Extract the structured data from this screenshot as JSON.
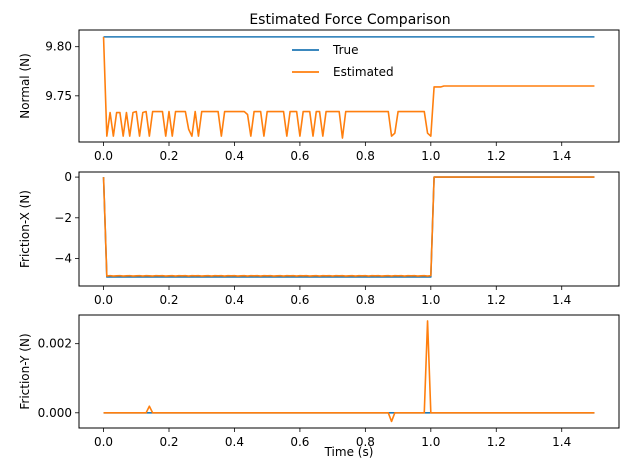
{
  "title": "Estimated Force Comparison",
  "xlabel": "Time (s)",
  "x_ticks": [
    0.0,
    0.2,
    0.4,
    0.6,
    0.8,
    1.0,
    1.2,
    1.4
  ],
  "x_tick_labels": [
    "0.0",
    "0.2",
    "0.4",
    "0.6",
    "0.8",
    "1.0",
    "1.2",
    "1.4"
  ],
  "legend": {
    "placement": "upper-center",
    "entries": [
      {
        "name": "True",
        "color": "#1f77b4"
      },
      {
        "name": "Estimated",
        "color": "#ff7f0e"
      }
    ]
  },
  "chart_data": [
    {
      "type": "line",
      "ylabel": "Normal (N)",
      "xlim": [
        -0.075,
        1.575
      ],
      "ylim": [
        9.703,
        9.817
      ],
      "y_ticks": [
        9.75,
        9.8
      ],
      "y_tick_labels": [
        "9.75",
        "9.80"
      ],
      "series": [
        {
          "name": "True",
          "color": "#1f77b4",
          "x": [
            0.0,
            1.5
          ],
          "y": [
            9.81,
            9.81
          ]
        },
        {
          "name": "Estimated",
          "color": "#ff7f0e",
          "x": [
            0.0,
            0.01,
            0.02,
            0.03,
            0.04,
            0.05,
            0.06,
            0.07,
            0.08,
            0.09,
            0.1,
            0.11,
            0.12,
            0.13,
            0.14,
            0.15,
            0.16,
            0.17,
            0.18,
            0.19,
            0.2,
            0.21,
            0.22,
            0.23,
            0.24,
            0.25,
            0.26,
            0.27,
            0.28,
            0.29,
            0.3,
            0.31,
            0.32,
            0.33,
            0.34,
            0.35,
            0.36,
            0.37,
            0.38,
            0.39,
            0.4,
            0.41,
            0.42,
            0.43,
            0.44,
            0.45,
            0.46,
            0.47,
            0.48,
            0.49,
            0.5,
            0.51,
            0.52,
            0.53,
            0.54,
            0.55,
            0.56,
            0.57,
            0.58,
            0.59,
            0.6,
            0.61,
            0.62,
            0.63,
            0.64,
            0.65,
            0.66,
            0.67,
            0.68,
            0.69,
            0.7,
            0.71,
            0.72,
            0.73,
            0.74,
            0.75,
            0.76,
            0.77,
            0.78,
            0.79,
            0.8,
            0.81,
            0.82,
            0.83,
            0.84,
            0.85,
            0.86,
            0.87,
            0.88,
            0.89,
            0.9,
            0.91,
            0.92,
            0.93,
            0.94,
            0.95,
            0.96,
            0.97,
            0.98,
            0.99,
            1.0,
            1.01,
            1.02,
            1.03,
            1.04,
            1.05,
            1.5
          ],
          "y": [
            9.81,
            9.709,
            9.733,
            9.709,
            9.733,
            9.733,
            9.709,
            9.733,
            9.709,
            9.733,
            9.734,
            9.709,
            9.733,
            9.734,
            9.709,
            9.734,
            9.734,
            9.734,
            9.734,
            9.709,
            9.734,
            9.709,
            9.734,
            9.734,
            9.734,
            9.734,
            9.716,
            9.709,
            9.734,
            9.709,
            9.734,
            9.734,
            9.734,
            9.734,
            9.734,
            9.734,
            9.709,
            9.734,
            9.734,
            9.734,
            9.734,
            9.734,
            9.734,
            9.734,
            9.731,
            9.709,
            9.734,
            9.734,
            9.734,
            9.709,
            9.734,
            9.734,
            9.734,
            9.734,
            9.734,
            9.734,
            9.709,
            9.734,
            9.734,
            9.734,
            9.709,
            9.734,
            9.734,
            9.734,
            9.709,
            9.734,
            9.734,
            9.709,
            9.734,
            9.734,
            9.734,
            9.734,
            9.734,
            9.707,
            9.734,
            9.734,
            9.734,
            9.734,
            9.734,
            9.734,
            9.734,
            9.734,
            9.734,
            9.734,
            9.734,
            9.734,
            9.734,
            9.734,
            9.709,
            9.712,
            9.734,
            9.734,
            9.734,
            9.734,
            9.734,
            9.734,
            9.734,
            9.734,
            9.734,
            9.712,
            9.709,
            9.759,
            9.759,
            9.759,
            9.76,
            9.76,
            9.76
          ]
        }
      ]
    },
    {
      "type": "line",
      "ylabel": "Friction-X (N)",
      "xlim": [
        -0.075,
        1.575
      ],
      "ylim": [
        -5.35,
        0.25
      ],
      "y_ticks": [
        -4,
        -2,
        0
      ],
      "y_tick_labels": [
        "−4",
        "−2",
        "0"
      ],
      "series": [
        {
          "name": "True",
          "color": "#1f77b4",
          "x": [
            0.0,
            0.01,
            0.99,
            1.0,
            1.01,
            1.5
          ],
          "y": [
            0.0,
            -4.905,
            -4.905,
            -4.905,
            0.0,
            0.0
          ]
        },
        {
          "name": "Estimated",
          "color": "#ff7f0e",
          "x": [
            0.0,
            0.01,
            0.02,
            0.03,
            0.04,
            0.05,
            0.06,
            0.07,
            0.08,
            0.09,
            0.1,
            0.11,
            0.12,
            0.13,
            0.14,
            0.15,
            0.16,
            0.17,
            0.18,
            0.19,
            0.2,
            0.21,
            0.22,
            0.23,
            0.24,
            0.25,
            0.26,
            0.27,
            0.28,
            0.29,
            0.3,
            0.31,
            0.32,
            0.33,
            0.34,
            0.35,
            0.36,
            0.37,
            0.38,
            0.39,
            0.4,
            0.41,
            0.42,
            0.43,
            0.44,
            0.45,
            0.46,
            0.47,
            0.48,
            0.49,
            0.5,
            0.51,
            0.52,
            0.53,
            0.54,
            0.55,
            0.56,
            0.57,
            0.58,
            0.59,
            0.6,
            0.61,
            0.62,
            0.63,
            0.64,
            0.65,
            0.66,
            0.67,
            0.68,
            0.69,
            0.7,
            0.71,
            0.72,
            0.73,
            0.74,
            0.75,
            0.76,
            0.77,
            0.78,
            0.79,
            0.8,
            0.81,
            0.82,
            0.83,
            0.84,
            0.85,
            0.86,
            0.87,
            0.88,
            0.89,
            0.9,
            0.91,
            0.92,
            0.93,
            0.94,
            0.95,
            0.96,
            0.97,
            0.98,
            0.99,
            1.0,
            1.01,
            1.5
          ],
          "y": [
            0.0,
            -4.86,
            -4.84,
            -4.86,
            -4.85,
            -4.84,
            -4.86,
            -4.85,
            -4.84,
            -4.86,
            -4.85,
            -4.84,
            -4.86,
            -4.84,
            -4.85,
            -4.86,
            -4.84,
            -4.85,
            -4.84,
            -4.86,
            -4.85,
            -4.84,
            -4.86,
            -4.84,
            -4.85,
            -4.84,
            -4.86,
            -4.84,
            -4.85,
            -4.84,
            -4.86,
            -4.85,
            -4.84,
            -4.86,
            -4.84,
            -4.85,
            -4.84,
            -4.86,
            -4.84,
            -4.85,
            -4.84,
            -4.86,
            -4.85,
            -4.84,
            -4.86,
            -4.84,
            -4.85,
            -4.84,
            -4.86,
            -4.84,
            -4.85,
            -4.84,
            -4.86,
            -4.85,
            -4.84,
            -4.86,
            -4.84,
            -4.85,
            -4.84,
            -4.86,
            -4.84,
            -4.85,
            -4.84,
            -4.86,
            -4.85,
            -4.84,
            -4.86,
            -4.84,
            -4.85,
            -4.84,
            -4.86,
            -4.84,
            -4.85,
            -4.84,
            -4.86,
            -4.85,
            -4.84,
            -4.86,
            -4.84,
            -4.85,
            -4.84,
            -4.86,
            -4.84,
            -4.85,
            -4.84,
            -4.86,
            -4.85,
            -4.84,
            -4.86,
            -4.84,
            -4.85,
            -4.84,
            -4.86,
            -4.84,
            -4.85,
            -4.84,
            -4.86,
            -4.85,
            -4.84,
            -4.86,
            -4.84,
            0.0,
            0.0
          ]
        }
      ]
    },
    {
      "type": "line",
      "ylabel": "Friction-Y (N)",
      "xlim": [
        -0.075,
        1.575
      ],
      "ylim": [
        -0.00044,
        0.00283
      ],
      "y_ticks": [
        0.0,
        0.002
      ],
      "y_tick_labels": [
        "0.000",
        "0.002"
      ],
      "series": [
        {
          "name": "True",
          "color": "#1f77b4",
          "x": [
            0.0,
            1.5
          ],
          "y": [
            0.0,
            0.0
          ]
        },
        {
          "name": "Estimated",
          "color": "#ff7f0e",
          "x": [
            0.0,
            0.13,
            0.14,
            0.15,
            0.87,
            0.88,
            0.89,
            0.98,
            0.99,
            1.0,
            1.5
          ],
          "y": [
            0.0,
            0.0,
            0.00019,
            0.0,
            0.0,
            -0.00025,
            0.0,
            0.0,
            0.00266,
            0.0,
            0.0
          ]
        }
      ]
    }
  ]
}
